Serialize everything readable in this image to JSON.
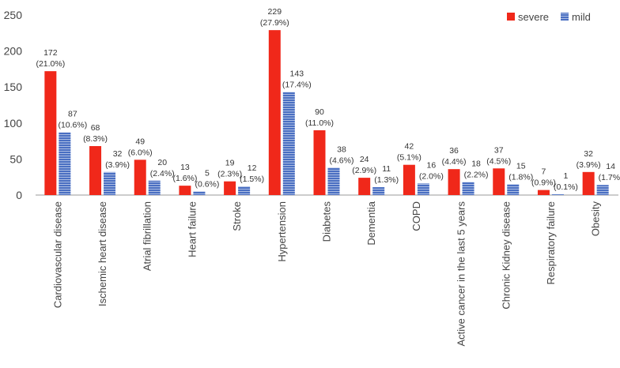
{
  "chart_data": {
    "type": "bar",
    "categories": [
      "Cardiovascular disease",
      "Ischemic heart disease",
      "Atrial fibrillation",
      "Heart failure",
      "Stroke",
      "Hypertension",
      "Diabetes",
      "Dementia",
      "COPD",
      "Active cancer in the last 5 years",
      "Chronic Kidney disease",
      "Respiratory failure",
      "Obesity"
    ],
    "series": [
      {
        "name": "severe",
        "color": "#f0281a",
        "values": [
          172,
          68,
          49,
          13,
          19,
          229,
          90,
          24,
          42,
          36,
          37,
          7,
          32
        ],
        "percent_labels": [
          "(21.0%)",
          "(8.3%)",
          "(6.0%)",
          "(1.6%)",
          "(2.3%)",
          "(27.9%)",
          "(11.0%)",
          "(2.9%)",
          "(5.1%)",
          "(4.4%)",
          "(4.5%)",
          "(0.9%)",
          "(3.9%)"
        ]
      },
      {
        "name": "mild",
        "color": "#4a6fc2",
        "values": [
          87,
          32,
          20,
          5,
          12,
          143,
          38,
          11,
          16,
          18,
          15,
          1,
          14
        ],
        "percent_labels": [
          "(10.6%)",
          "(3.9%)",
          "(2.4%)",
          "(0.6%)",
          "(1.5%)",
          "(17.4%)",
          "(4.6%)",
          "(1.3%)",
          "(2.0%)",
          "(2.2%)",
          "(1.8%)",
          "(0.1%)",
          "(1.7%)"
        ]
      }
    ],
    "ylim": [
      0,
      250
    ],
    "yticks": [
      0,
      50,
      100,
      150,
      200,
      250
    ],
    "grid": false,
    "legend": "top-right"
  }
}
